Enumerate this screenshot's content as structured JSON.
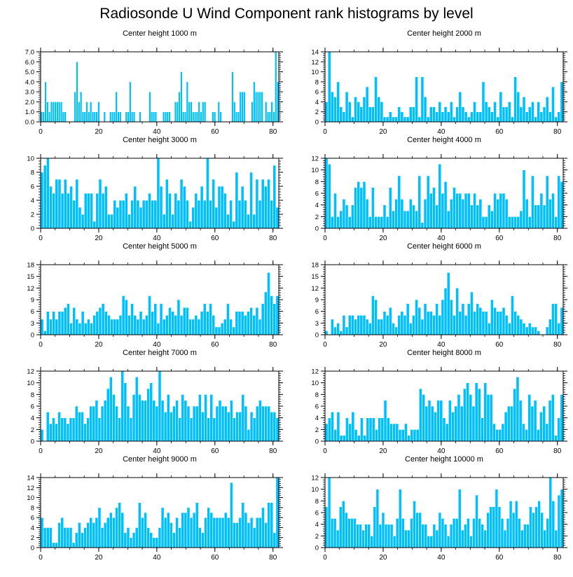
{
  "title": "Radiosonde U Wind Component rank histograms by level",
  "colors": {
    "bar": "#00BFFF",
    "bar_edge": "#ffffff",
    "axis": "#000000"
  },
  "chart_data": [
    {
      "type": "bar",
      "title": "Center height 1000 m",
      "xlim": [
        0,
        82
      ],
      "ylim": [
        0,
        7
      ],
      "xticks": [
        0,
        20,
        40,
        60,
        80
      ],
      "yticks": [
        0,
        1,
        2,
        3,
        4,
        5,
        6,
        7
      ],
      "ytick_labels": [
        "0.0",
        "1.0",
        "2.0",
        "3.0",
        "4.0",
        "5.0",
        "6.0",
        "7.0"
      ],
      "values": [
        1,
        1,
        4,
        2,
        1,
        2,
        2,
        2,
        2,
        2,
        2,
        1,
        1,
        0,
        0,
        0,
        0,
        3,
        6,
        2,
        3,
        1,
        1,
        2,
        1,
        2,
        1,
        1,
        1,
        2,
        0,
        0,
        1,
        0,
        0,
        1,
        1,
        1,
        3,
        1,
        1,
        0,
        0,
        1,
        1,
        4,
        1,
        1,
        0,
        0,
        1,
        0,
        0,
        0,
        0,
        3,
        1,
        1,
        1,
        0,
        0,
        0,
        1,
        1,
        1,
        1,
        0,
        0,
        2,
        2,
        3,
        5,
        1,
        1,
        4,
        2,
        2,
        1,
        1,
        1,
        2,
        1,
        2,
        2,
        0,
        0,
        0,
        1,
        1,
        0,
        2,
        1,
        0,
        0,
        0,
        0,
        0,
        5,
        2,
        1,
        1,
        3,
        3,
        3,
        0,
        0,
        0,
        2,
        4,
        3,
        3,
        3,
        3,
        0,
        2,
        1,
        1,
        2,
        1,
        7,
        4
      ]
    },
    {
      "type": "bar",
      "title": "Center height 2000 m",
      "xlim": [
        0,
        82
      ],
      "ylim": [
        0,
        14
      ],
      "xticks": [
        0,
        20,
        40,
        60,
        80
      ],
      "yticks": [
        0,
        2,
        4,
        6,
        8,
        10,
        12,
        14
      ],
      "ytick_labels": [
        "0",
        "2",
        "4",
        "6",
        "8",
        "10",
        "12",
        "14"
      ],
      "values": [
        4,
        14,
        6,
        5,
        8,
        3,
        2,
        6,
        4,
        1,
        5,
        4,
        3,
        5,
        7,
        3,
        3,
        9,
        5,
        4,
        1,
        1,
        2,
        1,
        1,
        3,
        2,
        1,
        1,
        3,
        3,
        9,
        1,
        9,
        5,
        1,
        3,
        3,
        2,
        4,
        2,
        3,
        2,
        4,
        1,
        3,
        6,
        3,
        2,
        1,
        2,
        4,
        2,
        2,
        8,
        4,
        3,
        2,
        4,
        1,
        6,
        3,
        3,
        4,
        1,
        9,
        6,
        3,
        5,
        2,
        3,
        4,
        1,
        4,
        2,
        3,
        5,
        2,
        7,
        1,
        2,
        8
      ]
    },
    {
      "type": "bar",
      "title": "Center height 3000 m",
      "xlim": [
        0,
        82
      ],
      "ylim": [
        0,
        10
      ],
      "xticks": [
        0,
        20,
        40,
        60,
        80
      ],
      "yticks": [
        0,
        2,
        4,
        6,
        8,
        10
      ],
      "ytick_labels": [
        "0",
        "2",
        "4",
        "6",
        "8",
        "10"
      ],
      "values": [
        8,
        9,
        10,
        6,
        5,
        7,
        7,
        5,
        7,
        5,
        6,
        4,
        7,
        3,
        2,
        5,
        5,
        5,
        1,
        5,
        7,
        5,
        6,
        2,
        2,
        4,
        3,
        4,
        4,
        5,
        2,
        4,
        6,
        4,
        3,
        4,
        4,
        5,
        4,
        4,
        10,
        6,
        2,
        7,
        5,
        2,
        5,
        4,
        7,
        6,
        4,
        1,
        3,
        5,
        4,
        6,
        4,
        10,
        4,
        7,
        3,
        6,
        6,
        5,
        2,
        4,
        1,
        8,
        4,
        6,
        4,
        2,
        8,
        2,
        7,
        4,
        7,
        6,
        7,
        4,
        9,
        3
      ]
    },
    {
      "type": "bar",
      "title": "Center height 4000 m",
      "xlim": [
        0,
        82
      ],
      "ylim": [
        0,
        12
      ],
      "xticks": [
        0,
        20,
        40,
        60,
        80
      ],
      "yticks": [
        0,
        2,
        4,
        6,
        8,
        10,
        12
      ],
      "ytick_labels": [
        "0",
        "2",
        "4",
        "6",
        "8",
        "10",
        "12"
      ],
      "values": [
        12,
        11,
        2,
        6,
        2,
        3,
        5,
        4,
        2,
        4,
        7,
        8,
        7,
        8,
        5,
        2,
        7,
        2,
        2,
        2,
        4,
        2,
        7,
        3,
        5,
        9,
        5,
        3,
        3,
        5,
        4,
        3,
        9,
        1,
        5,
        9,
        6,
        7,
        4,
        11,
        6,
        8,
        3,
        5,
        7,
        6,
        6,
        5,
        6,
        6,
        4,
        6,
        4,
        5,
        2,
        2,
        4,
        3,
        6,
        5,
        6,
        6,
        5,
        2,
        2,
        2,
        2,
        3,
        10,
        5,
        2,
        9,
        4,
        4,
        6,
        4,
        9,
        5,
        6,
        2,
        9,
        8
      ]
    },
    {
      "type": "bar",
      "title": "Center height 5000 m",
      "xlim": [
        0,
        82
      ],
      "ylim": [
        0,
        18
      ],
      "xticks": [
        0,
        20,
        40,
        60,
        80
      ],
      "yticks": [
        0,
        3,
        6,
        9,
        12,
        15,
        18
      ],
      "ytick_labels": [
        "0",
        "3",
        "6",
        "9",
        "12",
        "15",
        "18"
      ],
      "values": [
        4,
        1,
        6,
        4,
        6,
        4,
        6,
        6,
        7,
        8,
        3,
        7,
        4,
        3,
        6,
        3,
        4,
        3,
        5,
        6,
        7,
        8,
        6,
        5,
        4,
        4,
        4,
        5,
        10,
        9,
        5,
        8,
        5,
        4,
        6,
        4,
        5,
        10,
        6,
        8,
        3,
        8,
        4,
        5,
        7,
        6,
        5,
        9,
        5,
        7,
        7,
        4,
        4,
        5,
        4,
        6,
        8,
        6,
        8,
        5,
        2,
        2,
        3,
        4,
        8,
        4,
        2,
        6,
        6,
        6,
        5,
        6,
        7,
        5,
        7,
        4,
        8,
        11,
        16,
        10,
        8,
        10
      ]
    },
    {
      "type": "bar",
      "title": "Center height 6000 m",
      "xlim": [
        0,
        82
      ],
      "ylim": [
        0,
        18
      ],
      "xticks": [
        0,
        20,
        40,
        60,
        80
      ],
      "yticks": [
        0,
        3,
        6,
        9,
        12,
        15,
        18
      ],
      "ytick_labels": [
        "0",
        "3",
        "6",
        "9",
        "12",
        "15",
        "18"
      ],
      "values": [
        1,
        0,
        4,
        2,
        3,
        1,
        5,
        2,
        5,
        5,
        4,
        5,
        5,
        5,
        4,
        3,
        10,
        9,
        4,
        4,
        6,
        5,
        7,
        3,
        2,
        5,
        6,
        5,
        8,
        3,
        5,
        9,
        7,
        4,
        8,
        6,
        6,
        5,
        8,
        5,
        9,
        12,
        16,
        9,
        5,
        12,
        6,
        8,
        5,
        8,
        11,
        6,
        8,
        7,
        6,
        6,
        3,
        9,
        7,
        6,
        6,
        7,
        5,
        3,
        10,
        6,
        5,
        4,
        3,
        2,
        3,
        2,
        2,
        1,
        0,
        0,
        2,
        4,
        8,
        8,
        3,
        7
      ]
    },
    {
      "type": "bar",
      "title": "Center height 7000 m",
      "xlim": [
        0,
        82
      ],
      "ylim": [
        0,
        12
      ],
      "xticks": [
        0,
        20,
        40,
        60,
        80
      ],
      "yticks": [
        0,
        2,
        4,
        6,
        8,
        10,
        12
      ],
      "ytick_labels": [
        "0",
        "2",
        "4",
        "6",
        "8",
        "10",
        "12"
      ],
      "values": [
        2,
        0,
        5,
        3,
        4,
        3,
        5,
        4,
        4,
        3,
        4,
        4,
        6,
        5,
        5,
        3,
        4,
        6,
        6,
        7,
        4,
        6,
        7,
        9,
        11,
        8,
        6,
        4,
        12,
        10,
        6,
        4,
        8,
        11,
        8,
        7,
        7,
        9,
        10,
        7,
        6,
        12,
        7,
        5,
        8,
        5,
        6,
        7,
        4,
        8,
        7,
        6,
        4,
        6,
        6,
        8,
        5,
        8,
        4,
        8,
        4,
        6,
        7,
        6,
        6,
        5,
        7,
        4,
        5,
        5,
        8,
        6,
        2,
        5,
        4,
        6,
        7,
        6,
        6,
        6,
        5,
        5,
        4
      ]
    },
    {
      "type": "bar",
      "title": "Center height 8000 m",
      "xlim": [
        0,
        82
      ],
      "ylim": [
        0,
        12
      ],
      "xticks": [
        0,
        20,
        40,
        60,
        80
      ],
      "yticks": [
        0,
        2,
        4,
        6,
        8,
        10,
        12
      ],
      "ytick_labels": [
        "0",
        "2",
        "4",
        "6",
        "8",
        "10",
        "12"
      ],
      "values": [
        3,
        4,
        5,
        2,
        5,
        1,
        1,
        4,
        3,
        5,
        2,
        1,
        4,
        1,
        4,
        4,
        4,
        2,
        4,
        4,
        7,
        4,
        3,
        3,
        3,
        2,
        2,
        3,
        1,
        2,
        2,
        2,
        9,
        8,
        6,
        7,
        6,
        5,
        7,
        7,
        4,
        3,
        7,
        5,
        6,
        8,
        6,
        9,
        10,
        8,
        6,
        10,
        9,
        4,
        10,
        8,
        8,
        3,
        2,
        2,
        3,
        5,
        6,
        6,
        9,
        11,
        7,
        3,
        2,
        8,
        6,
        7,
        2,
        5,
        6,
        3,
        7,
        8,
        1,
        4,
        8
      ]
    },
    {
      "type": "bar",
      "title": "Center height 9000 m",
      "xlim": [
        0,
        82
      ],
      "ylim": [
        0,
        14
      ],
      "xticks": [
        0,
        20,
        40,
        60,
        80
      ],
      "yticks": [
        0,
        2,
        4,
        6,
        8,
        10,
        12,
        14
      ],
      "ytick_labels": [
        "0",
        "2",
        "4",
        "6",
        "8",
        "10",
        "12",
        "14"
      ],
      "values": [
        6,
        4,
        4,
        4,
        1,
        1,
        5,
        6,
        4,
        4,
        4,
        1,
        3,
        5,
        3,
        4,
        5,
        6,
        5,
        6,
        8,
        4,
        5,
        6,
        7,
        6,
        8,
        9,
        7,
        3,
        4,
        2,
        3,
        4,
        9,
        6,
        7,
        4,
        3,
        2,
        2,
        4,
        8,
        6,
        7,
        5,
        3,
        6,
        4,
        7,
        7,
        8,
        6,
        7,
        9,
        4,
        3,
        6,
        8,
        7,
        6,
        6,
        6,
        6,
        7,
        6,
        13,
        5,
        5,
        6,
        9,
        7,
        5,
        6,
        4,
        6,
        6,
        8,
        5,
        9,
        9,
        3,
        14
      ]
    },
    {
      "type": "bar",
      "title": "Center height 10000 m",
      "xlim": [
        0,
        82
      ],
      "ylim": [
        0,
        12
      ],
      "xticks": [
        0,
        20,
        40,
        60,
        80
      ],
      "yticks": [
        0,
        2,
        4,
        6,
        8,
        10,
        12
      ],
      "ytick_labels": [
        "0",
        "2",
        "4",
        "6",
        "8",
        "10",
        "12"
      ],
      "values": [
        7,
        12,
        5,
        5,
        3,
        7,
        8,
        6,
        5,
        5,
        5,
        4,
        4,
        3,
        4,
        4,
        2,
        7,
        10,
        4,
        6,
        4,
        4,
        4,
        2,
        5,
        10,
        5,
        3,
        3,
        5,
        8,
        6,
        6,
        4,
        4,
        2,
        2,
        4,
        3,
        6,
        5,
        4,
        2,
        4,
        5,
        5,
        10,
        3,
        4,
        5,
        2,
        5,
        9,
        5,
        4,
        3,
        6,
        7,
        7,
        10,
        7,
        5,
        3,
        5,
        8,
        6,
        8,
        5,
        3,
        4,
        4,
        7,
        6,
        7,
        8,
        6,
        3,
        5,
        12,
        8,
        3,
        9,
        10
      ]
    }
  ]
}
